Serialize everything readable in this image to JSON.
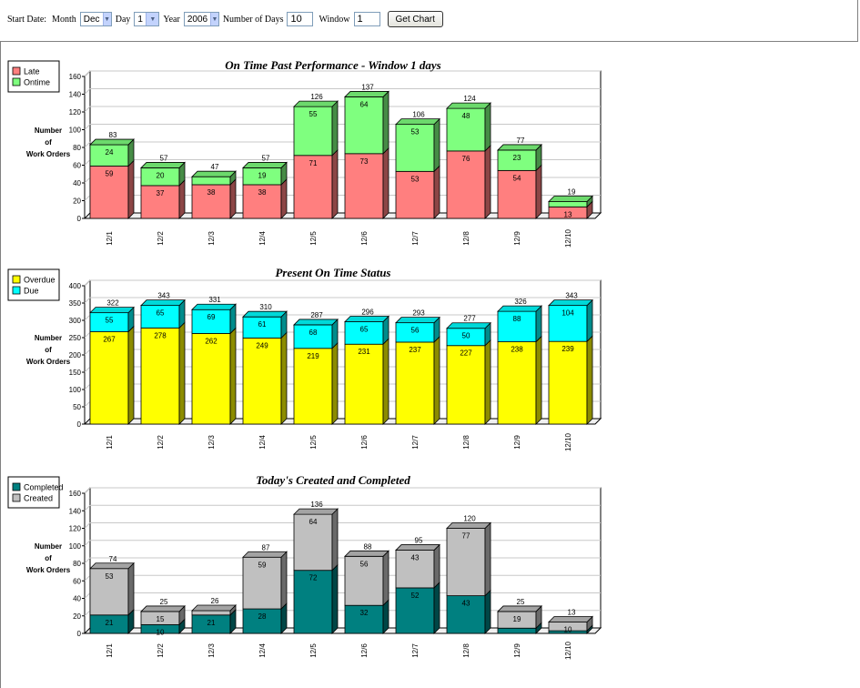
{
  "form": {
    "start_date_label": "Start Date:",
    "month_label": "Month",
    "month_value": "Dec",
    "day_label": "Day",
    "day_value": "1",
    "year_label": "Year",
    "year_value": "2006",
    "days_label": "Number of Days",
    "days_value": "10",
    "window_label": "Window",
    "window_value": "1",
    "button_label": "Get Chart"
  },
  "chart_data": [
    {
      "type": "bar",
      "stacked": true,
      "title": "On Time Past Performance - Window 1 days",
      "ylabel": [
        "Number",
        "of",
        "Work Orders"
      ],
      "ylim": [
        0,
        160
      ],
      "yticks": [
        0,
        20,
        40,
        60,
        80,
        100,
        120,
        140,
        160
      ],
      "categories": [
        "12/1",
        "12/2",
        "12/3",
        "12/4",
        "12/5",
        "12/6",
        "12/7",
        "12/8",
        "12/9",
        "12/10"
      ],
      "series": [
        {
          "name": "Late",
          "color": "#ff7f7f",
          "values": [
            59,
            37,
            38,
            38,
            71,
            73,
            53,
            76,
            54,
            13
          ]
        },
        {
          "name": "Ontime",
          "color": "#7fff7f",
          "values": [
            24,
            20,
            9,
            19,
            55,
            64,
            53,
            48,
            23,
            6
          ]
        }
      ],
      "segment_labels": [
        [
          "59",
          "37",
          "38",
          "38",
          "71",
          "73",
          "53",
          "76",
          "54",
          "13"
        ],
        [
          "24",
          "20",
          "",
          "19",
          "55",
          "64",
          "53",
          "48",
          "23",
          ""
        ]
      ],
      "totals": [
        83,
        57,
        47,
        57,
        126,
        137,
        106,
        124,
        77,
        19
      ],
      "legend_position": "top-left"
    },
    {
      "type": "bar",
      "stacked": true,
      "title": "Present On Time Status",
      "ylabel": [
        "Number",
        "of",
        "Work Orders"
      ],
      "ylim": [
        0,
        400
      ],
      "yticks": [
        0,
        50,
        100,
        150,
        200,
        250,
        300,
        350,
        400
      ],
      "categories": [
        "12/1",
        "12/2",
        "12/3",
        "12/4",
        "12/5",
        "12/6",
        "12/7",
        "12/8",
        "12/9",
        "12/10"
      ],
      "series": [
        {
          "name": "Overdue",
          "color": "#ffff00",
          "values": [
            267,
            278,
            262,
            249,
            219,
            231,
            237,
            227,
            238,
            239
          ]
        },
        {
          "name": "Due",
          "color": "#00ffff",
          "values": [
            55,
            65,
            69,
            61,
            68,
            65,
            56,
            50,
            88,
            104
          ]
        }
      ],
      "segment_labels": [
        [
          "267",
          "278",
          "262",
          "249",
          "219",
          "231",
          "237",
          "227",
          "238",
          "239"
        ],
        [
          "55",
          "65",
          "69",
          "61",
          "68",
          "65",
          "56",
          "50",
          "88",
          "104"
        ]
      ],
      "totals": [
        322,
        343,
        331,
        310,
        287,
        296,
        293,
        277,
        326,
        343
      ],
      "legend_position": "top-left"
    },
    {
      "type": "bar",
      "stacked": true,
      "title": "Today's Created and Completed",
      "ylabel": [
        "Number",
        "of",
        "Work Orders"
      ],
      "ylim": [
        0,
        160
      ],
      "yticks": [
        0,
        20,
        40,
        60,
        80,
        100,
        120,
        140,
        160
      ],
      "categories": [
        "12/1",
        "12/2",
        "12/3",
        "12/4",
        "12/5",
        "12/6",
        "12/7",
        "12/8",
        "12/9",
        "12/10"
      ],
      "series": [
        {
          "name": "Completed",
          "color": "#008080",
          "values": [
            21,
            10,
            21,
            28,
            72,
            32,
            52,
            43,
            6,
            3
          ]
        },
        {
          "name": "Created",
          "color": "#c0c0c0",
          "values": [
            53,
            15,
            5,
            59,
            64,
            56,
            43,
            77,
            19,
            10
          ]
        }
      ],
      "segment_labels": [
        [
          "21",
          "10",
          "21",
          "28",
          "72",
          "32",
          "52",
          "43",
          "",
          ""
        ],
        [
          "53",
          "15",
          "",
          "59",
          "64",
          "56",
          "43",
          "77",
          "19",
          "10"
        ]
      ],
      "totals": [
        74,
        25,
        26,
        87,
        136,
        88,
        95,
        120,
        25,
        13
      ],
      "legend_position": "top-left"
    }
  ]
}
